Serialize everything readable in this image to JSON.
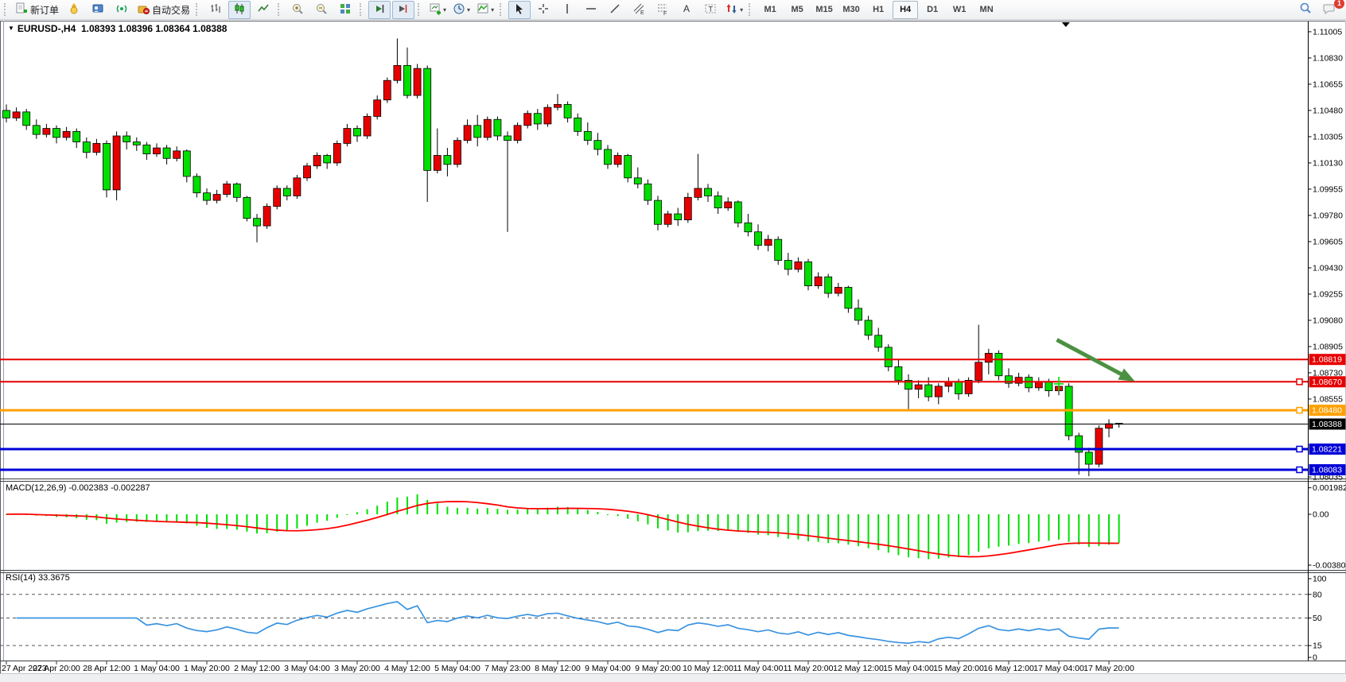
{
  "toolbar": {
    "groups": [
      {
        "name": "trade",
        "items": [
          {
            "name": "new-order-button",
            "icon": "neworder",
            "label": "新订单"
          },
          {
            "name": "mql5-button",
            "icon": "medal"
          },
          {
            "name": "metaeditor-button",
            "icon": "editor"
          },
          {
            "name": "signals-button",
            "icon": "signals"
          },
          {
            "name": "autotrade-button",
            "icon": "autotrade",
            "label": "自动交易"
          }
        ]
      },
      {
        "name": "chart-type",
        "items": [
          {
            "name": "bar-chart-button",
            "icon": "bars"
          },
          {
            "name": "candle-chart-button",
            "icon": "candles",
            "active": true
          },
          {
            "name": "line-chart-button",
            "icon": "linechart"
          }
        ]
      },
      {
        "name": "zoom",
        "items": [
          {
            "name": "zoom-in-button",
            "icon": "zoomin"
          },
          {
            "name": "zoom-out-button",
            "icon": "zoomout"
          },
          {
            "name": "tile-windows-button",
            "icon": "tiles"
          }
        ]
      },
      {
        "name": "scroll",
        "items": [
          {
            "name": "auto-scroll-button",
            "icon": "autoscroll",
            "active": true
          },
          {
            "name": "chart-shift-button",
            "icon": "shiftend",
            "active": true
          }
        ]
      },
      {
        "name": "new-objects",
        "items": [
          {
            "name": "new-chart-button",
            "icon": "newchart",
            "caret": true
          },
          {
            "name": "period-button",
            "icon": "clock",
            "caret": true
          },
          {
            "name": "indicators-button",
            "icon": "indicators",
            "caret": true
          }
        ]
      },
      {
        "name": "drawing",
        "items": [
          {
            "name": "cursor-button",
            "icon": "cursor",
            "active": true
          },
          {
            "name": "crosshair-button",
            "icon": "crosshair"
          },
          {
            "name": "vertical-line-button",
            "icon": "vline"
          },
          {
            "name": "horizontal-line-button",
            "icon": "hline"
          },
          {
            "name": "trendline-button",
            "icon": "trend"
          },
          {
            "name": "equidistant-channel-button",
            "icon": "fiboe"
          },
          {
            "name": "fibonacci-button",
            "icon": "fibof"
          },
          {
            "name": "text-button",
            "icon": "textA"
          },
          {
            "name": "label-button",
            "icon": "labelT"
          },
          {
            "name": "arrows-object-button",
            "icon": "arrowsobj",
            "caret": true
          }
        ]
      },
      {
        "name": "timeframes",
        "items": [
          {
            "name": "tf-m1-button",
            "label": "M1",
            "text_button": true
          },
          {
            "name": "tf-m5-button",
            "label": "M5",
            "text_button": true
          },
          {
            "name": "tf-m15-button",
            "label": "M15",
            "text_button": true
          },
          {
            "name": "tf-m30-button",
            "label": "M30",
            "text_button": true
          },
          {
            "name": "tf-h1-button",
            "label": "H1",
            "text_button": true
          },
          {
            "name": "tf-h4-button",
            "label": "H4",
            "text_button": true,
            "active": true
          },
          {
            "name": "tf-d1-button",
            "label": "D1",
            "text_button": true
          },
          {
            "name": "tf-w1-button",
            "label": "W1",
            "text_button": true
          },
          {
            "name": "tf-mn-button",
            "label": "MN",
            "text_button": true
          }
        ]
      }
    ],
    "right": [
      {
        "name": "search-button",
        "icon": "search"
      },
      {
        "name": "notifications-button",
        "icon": "chat",
        "badge": "1"
      }
    ]
  },
  "chart": {
    "title": {
      "dropdown_glyph": "▼",
      "symbol_period": "EURUSD-,H4",
      "ohlc": "1.08393 1.08396 1.08364 1.08388"
    },
    "macd_label": "MACD(12,26,9) -0.002383 -0.002287",
    "rsi_label": "RSI(14) 33.3675",
    "price_axis_ticks": [
      "1.11005",
      "1.10830",
      "1.10655",
      "1.10480",
      "1.10305",
      "1.10130",
      "1.09955",
      "1.09780",
      "1.09605",
      "1.09430",
      "1.09255",
      "1.09080",
      "1.08905",
      "1.08730",
      "1.08555",
      "1.08035"
    ],
    "macd_axis_ticks": [
      {
        "label": "0.001982",
        "value": 0.001982
      },
      {
        "label": "0.00",
        "value": 0
      },
      {
        "label": "-0.003804",
        "value": -0.003804
      }
    ],
    "rsi_axis_ticks": [
      {
        "label": "100",
        "value": 100
      },
      {
        "label": "80",
        "value": 80
      },
      {
        "label": "50",
        "value": 50
      },
      {
        "label": "15",
        "value": 15
      },
      {
        "label": "0",
        "value": 0
      }
    ],
    "rsi_dashed_levels": [
      80,
      50,
      15
    ]
  },
  "chart_data": {
    "type": "candlestick",
    "symbol": "EURUSD-",
    "period": "H4",
    "title": "EURUSD-,H4",
    "last_quote": {
      "open": 1.08393,
      "high": 1.08396,
      "low": 1.08364,
      "close": 1.08388
    },
    "ylim": [
      1.0803,
      1.11047
    ],
    "bull_color": "#e60000",
    "bear_color": "#00df00",
    "wick_color": "#000000",
    "macd_histogram_color": "#00e100",
    "macd_signal_color": "#ff0000",
    "rsi_line_color": "#3a93e0",
    "indicators": [
      {
        "name": "MACD",
        "params": [
          12,
          26,
          9
        ],
        "current_main": -0.002383,
        "current_signal": -0.002287
      },
      {
        "name": "RSI",
        "params": [
          14
        ],
        "current": 33.3675
      }
    ],
    "horizontal_lines": [
      {
        "price": 1.08819,
        "label": "1.08819",
        "color": "#e60000",
        "width": 2,
        "handle": false
      },
      {
        "price": 1.0867,
        "label": "1.08670",
        "color": "#e60000",
        "width": 2,
        "handle": true
      },
      {
        "price": 1.0848,
        "label": "1.08480",
        "color": "#ffa000",
        "width": 3,
        "handle": true
      },
      {
        "price": 1.08388,
        "label": "1.08388",
        "color": "#000000",
        "width": 1,
        "handle": false
      },
      {
        "price": 1.08221,
        "label": "1.08221",
        "color": "#0000d8",
        "width": 3,
        "handle": true
      },
      {
        "price": 1.08083,
        "label": "1.08083",
        "color": "#0000d8",
        "width": 3,
        "handle": true
      }
    ],
    "annotations": {
      "arrow": {
        "x1_bar": 104.8,
        "y1_price": 1.0895,
        "x2_bar": 112.6,
        "y2_price": 1.08672,
        "color": "#4c9141"
      },
      "cross_marker": {
        "bar": 105,
        "price": 1.08656,
        "color": "#00e100"
      },
      "shift_marker_bar": 105.7
    },
    "x_labels": [
      "27 Apr 2023",
      "27 Apr 20:00",
      "28 Apr 12:00",
      "1 May 04:00",
      "1 May 20:00",
      "2 May 12:00",
      "3 May 04:00",
      "3 May 20:00",
      "4 May 12:00",
      "5 May 04:00",
      "7 May 23:00",
      "8 May 12:00",
      "9 May 04:00",
      "9 May 20:00",
      "10 May 12:00",
      "11 May 04:00",
      "11 May 20:00",
      "12 May 12:00",
      "15 May 04:00",
      "15 May 20:00",
      "16 May 12:00",
      "17 May 04:00",
      "17 May 20:00"
    ],
    "x_label_every_n_bars": 5,
    "candles": [
      [
        1.1048,
        1.1052,
        1.104,
        1.1043
      ],
      [
        1.1043,
        1.105,
        1.1041,
        1.1047
      ],
      [
        1.1047,
        1.1049,
        1.1035,
        1.1038
      ],
      [
        1.1038,
        1.1042,
        1.1029,
        1.1032
      ],
      [
        1.1032,
        1.1039,
        1.103,
        1.1036
      ],
      [
        1.1036,
        1.1038,
        1.1026,
        1.103
      ],
      [
        1.103,
        1.1037,
        1.1028,
        1.1034
      ],
      [
        1.1034,
        1.1036,
        1.1023,
        1.1027
      ],
      [
        1.1027,
        1.103,
        1.1016,
        1.102
      ],
      [
        1.102,
        1.1029,
        1.1018,
        1.1026
      ],
      [
        1.1026,
        1.1028,
        1.099,
        1.0995
      ],
      [
        1.0995,
        1.1034,
        1.0988,
        1.1031
      ],
      [
        1.1031,
        1.1034,
        1.1022,
        1.1027
      ],
      [
        1.1027,
        1.103,
        1.1021,
        1.1025
      ],
      [
        1.1025,
        1.1027,
        1.1015,
        1.1019
      ],
      [
        1.1019,
        1.1026,
        1.1017,
        1.1023
      ],
      [
        1.1023,
        1.1025,
        1.1012,
        1.1016
      ],
      [
        1.1016,
        1.1024,
        1.1014,
        1.1021
      ],
      [
        1.1021,
        1.1022,
        1.1,
        1.1004
      ],
      [
        1.1004,
        1.1006,
        1.099,
        1.0993
      ],
      [
        1.0993,
        1.0996,
        1.0985,
        1.0988
      ],
      [
        1.0988,
        1.0995,
        1.0986,
        1.0992
      ],
      [
        1.0992,
        1.1001,
        1.099,
        1.0999
      ],
      [
        1.0999,
        1.1,
        1.0987,
        1.099
      ],
      [
        1.099,
        1.0991,
        1.0974,
        1.0976
      ],
      [
        1.0976,
        1.0979,
        1.096,
        1.0971
      ],
      [
        1.0971,
        1.0986,
        1.0969,
        1.0984
      ],
      [
        1.0984,
        1.0998,
        1.0982,
        1.0996
      ],
      [
        1.0996,
        1.0998,
        1.0988,
        1.0991
      ],
      [
        1.0991,
        1.1005,
        1.0989,
        1.1003
      ],
      [
        1.1003,
        1.1013,
        1.1001,
        1.1011
      ],
      [
        1.1011,
        1.102,
        1.1009,
        1.1018
      ],
      [
        1.1018,
        1.1019,
        1.1009,
        1.1013
      ],
      [
        1.1013,
        1.1028,
        1.1011,
        1.1026
      ],
      [
        1.1026,
        1.1039,
        1.1024,
        1.1036
      ],
      [
        1.1036,
        1.1038,
        1.1027,
        1.1031
      ],
      [
        1.1031,
        1.1046,
        1.1029,
        1.1044
      ],
      [
        1.1044,
        1.1058,
        1.1042,
        1.1055
      ],
      [
        1.1055,
        1.107,
        1.1053,
        1.1068
      ],
      [
        1.1068,
        1.1096,
        1.1066,
        1.1078
      ],
      [
        1.1078,
        1.109,
        1.1056,
        1.1058
      ],
      [
        1.1058,
        1.1079,
        1.1056,
        1.1076
      ],
      [
        1.1076,
        1.1078,
        1.0987,
        1.1008
      ],
      [
        1.1008,
        1.1036,
        1.1006,
        1.1018
      ],
      [
        1.1018,
        1.1023,
        1.1004,
        1.1012
      ],
      [
        1.1012,
        1.103,
        1.101,
        1.1028
      ],
      [
        1.1028,
        1.1042,
        1.1026,
        1.1038
      ],
      [
        1.1038,
        1.1045,
        1.1024,
        1.103
      ],
      [
        1.103,
        1.1044,
        1.1028,
        1.1042
      ],
      [
        1.1042,
        1.1044,
        1.1028,
        1.1031
      ],
      [
        1.1031,
        1.1034,
        1.0967,
        1.1028
      ],
      [
        1.1028,
        1.104,
        1.1026,
        1.1038
      ],
      [
        1.1038,
        1.1048,
        1.1036,
        1.1046
      ],
      [
        1.1046,
        1.1049,
        1.1035,
        1.1039
      ],
      [
        1.1039,
        1.1052,
        1.1037,
        1.105
      ],
      [
        1.105,
        1.1059,
        1.1048,
        1.1052
      ],
      [
        1.1052,
        1.1054,
        1.104,
        1.1043
      ],
      [
        1.1043,
        1.1046,
        1.1031,
        1.1034
      ],
      [
        1.1034,
        1.104,
        1.1025,
        1.1028
      ],
      [
        1.1028,
        1.1033,
        1.1018,
        1.1022
      ],
      [
        1.1022,
        1.1025,
        1.1009,
        1.1012
      ],
      [
        1.1012,
        1.102,
        1.101,
        1.1018
      ],
      [
        1.1018,
        1.1019,
        1.1,
        1.1003
      ],
      [
        1.1003,
        1.101,
        1.0996,
        1.0999
      ],
      [
        1.0999,
        1.1002,
        1.0985,
        1.0988
      ],
      [
        1.0988,
        1.0991,
        1.0968,
        1.0972
      ],
      [
        1.0972,
        1.0981,
        1.097,
        1.0979
      ],
      [
        1.0979,
        1.0983,
        1.0971,
        1.0975
      ],
      [
        1.0975,
        1.0993,
        1.0973,
        1.099
      ],
      [
        1.099,
        1.1019,
        1.0988,
        1.0996
      ],
      [
        1.0996,
        1.0999,
        1.0987,
        1.0991
      ],
      [
        1.0991,
        1.0994,
        1.0979,
        1.0983
      ],
      [
        1.0983,
        1.099,
        1.0981,
        1.0987
      ],
      [
        1.0987,
        1.0988,
        1.097,
        1.0973
      ],
      [
        1.0973,
        1.0979,
        1.0964,
        1.0967
      ],
      [
        1.0967,
        1.0972,
        1.0955,
        1.0958
      ],
      [
        1.0958,
        1.0965,
        1.0954,
        1.0962
      ],
      [
        1.0962,
        1.0964,
        1.0945,
        1.0948
      ],
      [
        1.0948,
        1.0953,
        1.0938,
        1.0942
      ],
      [
        1.0942,
        1.095,
        1.094,
        1.0947
      ],
      [
        1.0947,
        1.0949,
        1.0928,
        1.0931
      ],
      [
        1.0931,
        1.094,
        1.0929,
        1.0937
      ],
      [
        1.0937,
        1.0939,
        1.0923,
        1.0926
      ],
      [
        1.0926,
        1.0933,
        1.0924,
        1.093
      ],
      [
        1.093,
        1.0931,
        1.0913,
        1.0916
      ],
      [
        1.0916,
        1.0922,
        1.0905,
        1.0908
      ],
      [
        1.0908,
        1.0911,
        1.0895,
        1.0898
      ],
      [
        1.0898,
        1.0903,
        1.0887,
        1.089
      ],
      [
        1.089,
        1.0892,
        1.0874,
        1.0877
      ],
      [
        1.0877,
        1.0882,
        1.0865,
        1.0868
      ],
      [
        1.0868,
        1.0872,
        1.0848,
        1.0862
      ],
      [
        1.0862,
        1.0868,
        1.0856,
        1.0865
      ],
      [
        1.0865,
        1.087,
        1.0854,
        1.0857
      ],
      [
        1.0857,
        1.0866,
        1.0852,
        1.0864
      ],
      [
        1.0864,
        1.087,
        1.086,
        1.0867
      ],
      [
        1.0867,
        1.0869,
        1.0855,
        1.0859
      ],
      [
        1.0859,
        1.087,
        1.0857,
        1.0868
      ],
      [
        1.0868,
        1.0905,
        1.0866,
        1.088
      ],
      [
        1.088,
        1.0889,
        1.0872,
        1.0886
      ],
      [
        1.0886,
        1.0888,
        1.0868,
        1.0871
      ],
      [
        1.0871,
        1.0876,
        1.0863,
        1.0866
      ],
      [
        1.0866,
        1.0873,
        1.0864,
        1.087
      ],
      [
        1.087,
        1.0872,
        1.086,
        1.0863
      ],
      [
        1.0863,
        1.087,
        1.0861,
        1.0867
      ],
      [
        1.0867,
        1.0869,
        1.0857,
        1.0861
      ],
      [
        1.0861,
        1.0866,
        1.0858,
        1.0864
      ],
      [
        1.0864,
        1.0866,
        1.0828,
        1.0831
      ],
      [
        1.0831,
        1.0833,
        1.0805,
        1.082
      ],
      [
        1.082,
        1.0823,
        1.0804,
        1.0812
      ],
      [
        1.0812,
        1.0838,
        1.081,
        1.0836
      ],
      [
        1.0836,
        1.0842,
        1.083,
        1.0839
      ],
      [
        1.08393,
        1.08396,
        1.08364,
        1.08388
      ]
    ]
  }
}
